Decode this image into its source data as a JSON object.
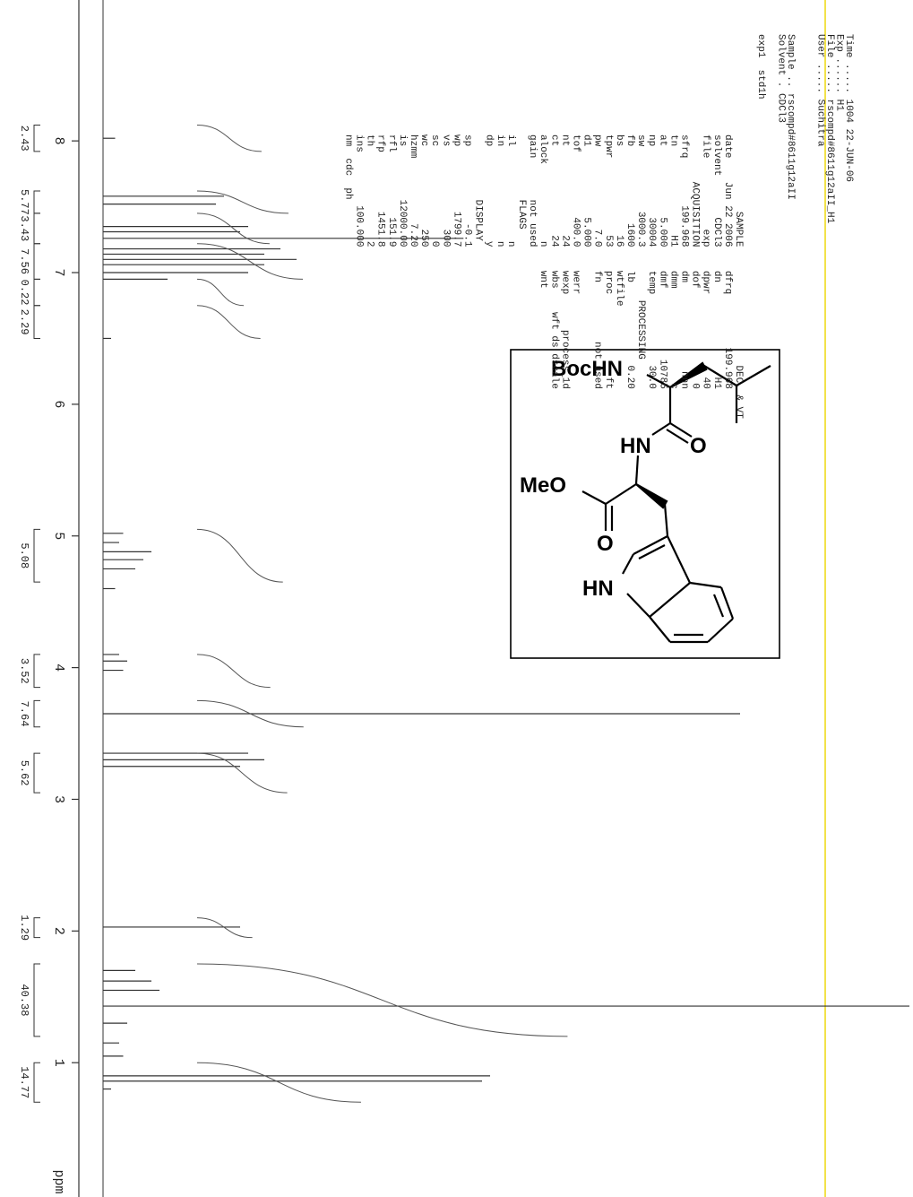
{
  "header": {
    "lines": [
      "Time ..... 1004 22-JUN-06",
      "Exp ...... H1",
      "File ..... rscompd#8611g12aII_H1",
      "User ..... Suchitra"
    ],
    "sample": [
      "Sample .. rscompd#8611g12aII",
      "Solvent . CDCl3"
    ],
    "experiment": "exp1  std1h"
  },
  "parameters": [
    "             SAMPLE                    DEC. & VT",
    "date    Jun 22 2006    dfrq         199.968",
    "solvent       CDCl3    dn                H1",
    "file            exp    dpwr              40",
    "        ACQUISITION    dof                0",
    "sfrq        199.968    dm               nnn",
    "tn               H1    dmm                c",
    "at            5.000    dmf            10785",
    "np            30004    temp            30.0",
    "sw           3000.3         PROCESSING",
    "fb             1600    lb              0.20",
    "bs               16    wtfile",
    "tpwr             53    proc              ft",
    "pw              7.0    fn          not used",
    "d1            5.000",
    "tof           400.0    werr",
    "nt               24    wexp      process_1d",
    "ct               24    wbs    wft ds dscale",
    "alock             n    wnt",
    "gain       not used",
    "           FLAGS",
    "il                n",
    "in                n",
    "dp                y",
    "           DISPLAY",
    "sp             -0.1",
    "wp           1799.7",
    "vs              300",
    "sc                0",
    "wc              250",
    "hzmm           7.20",
    "is         12000.00",
    "rfl           151.9",
    "rfp          1451.8",
    "th                2",
    "ins         100.000",
    "nm  cdc  ph"
  ],
  "chart_data": {
    "type": "spectrum",
    "xlabel": "ppm",
    "xlim": [
      9.07,
      -0.02
    ],
    "xticks": [
      8,
      7,
      6,
      5,
      4,
      3,
      2,
      1
    ],
    "ylim": [
      0,
      100
    ],
    "color": "#333333",
    "peaks": {
      "x": [
        8.02,
        7.58,
        7.52,
        7.35,
        7.31,
        7.26,
        7.18,
        7.14,
        7.1,
        7.06,
        7.0,
        6.95,
        6.5,
        5.02,
        4.95,
        4.88,
        4.82,
        4.75,
        4.6,
        4.1,
        4.05,
        3.98,
        3.65,
        3.35,
        3.3,
        3.25,
        2.03,
        1.7,
        1.62,
        1.55,
        1.43,
        1.3,
        1.15,
        1.05,
        0.9,
        0.86,
        0.8
      ],
      "values": [
        1.5,
        15,
        14,
        18,
        17,
        44.7,
        22,
        20,
        24,
        20,
        18,
        8,
        1,
        2.5,
        2,
        6,
        5,
        4,
        1.5,
        2,
        3,
        2.5,
        79,
        18,
        20,
        17,
        17,
        4,
        6,
        7,
        100,
        3,
        2,
        2.5,
        48,
        47,
        1
      ]
    },
    "integrals": {
      "regions": [
        [
          8.12,
          7.92
        ],
        [
          7.62,
          7.45
        ],
        [
          7.45,
          7.22
        ],
        [
          7.22,
          6.95
        ],
        [
          6.95,
          6.75
        ],
        [
          6.75,
          6.5
        ],
        [
          5.05,
          4.65
        ],
        [
          4.1,
          3.85
        ],
        [
          3.75,
          3.55
        ],
        [
          3.35,
          3.05
        ],
        [
          2.1,
          1.95
        ],
        [
          1.75,
          1.2
        ],
        [
          1.0,
          0.7
        ]
      ],
      "values": [
        2.43,
        5.77,
        3.43,
        7.56,
        0.22,
        2.29,
        5.08,
        3.52,
        7.64,
        5.62,
        1.29,
        40.38,
        14.77
      ]
    }
  },
  "structure": {
    "labels": [
      "BocHN",
      "HN",
      "O",
      "MeO",
      "O",
      "HN"
    ]
  }
}
